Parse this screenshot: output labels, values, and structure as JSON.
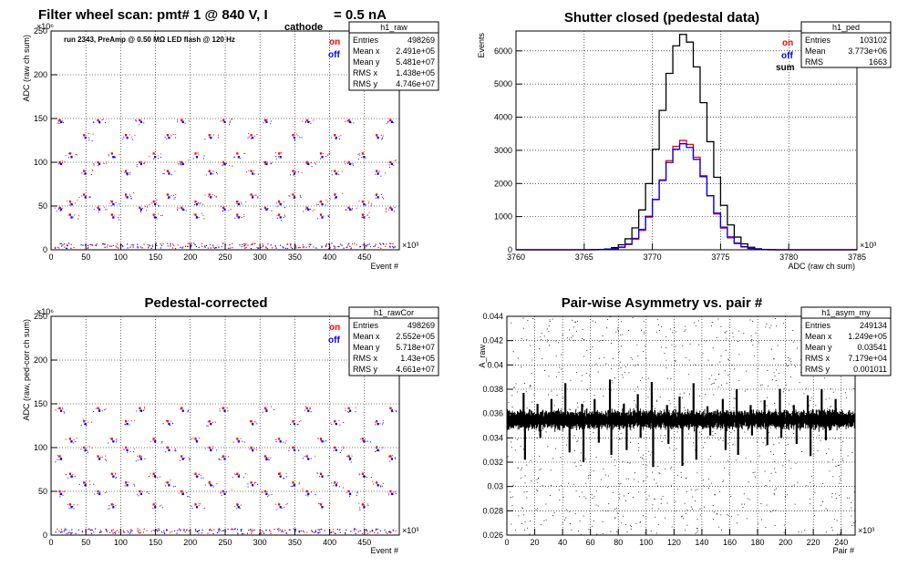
{
  "chart_data": [
    {
      "type": "scatter",
      "title_main": "Filter wheel scan: pmt#   1 @   840 V, I",
      "title_sub": "cathode",
      "title_end": "= 0.5 nA",
      "annotation": "run 2343, PreAmp @ 0.50 MΩ   LED flash @  120 Hz",
      "xlabel": "Event #",
      "ylabel": "ADC (raw ch sum)",
      "x_exponent": "×10³",
      "y_exponent": "×10⁶",
      "xlim": [
        0,
        500
      ],
      "ylim": [
        0,
        250
      ],
      "xticks": [
        0,
        50,
        100,
        150,
        200,
        250,
        300,
        350,
        400,
        450
      ],
      "yticks": [
        0,
        50,
        100,
        150,
        200,
        250
      ],
      "grid": true,
      "legend_position": "top-right",
      "legend": [
        {
          "label": "on",
          "color": "#ff0000"
        },
        {
          "label": "off",
          "color": "#0000ff"
        }
      ],
      "stats": {
        "name": "h1_raw",
        "rows": [
          [
            "Entries",
            "498269"
          ],
          [
            "Mean x",
            "2.491e+05"
          ],
          [
            "Mean y",
            "5.481e+07"
          ],
          [
            "RMS x",
            "1.438e+05"
          ],
          [
            "RMS y",
            "4.746e+07"
          ]
        ]
      },
      "bands": [
        {
          "x": [
            5,
            20
          ],
          "on": [
            48,
            100,
            148
          ],
          "off": [
            46,
            98,
            146
          ]
        },
        {
          "x": [
            20,
            40
          ],
          "on": [
            40,
            55,
            110
          ],
          "off": [
            37,
            52,
            106
          ]
        },
        {
          "x": [
            40,
            60
          ],
          "on": [
            63,
            90,
            131
          ],
          "off": [
            60,
            87,
            128
          ]
        },
        {
          "x": [
            60,
            80
          ],
          "on": [
            48,
            100,
            148
          ],
          "off": [
            46,
            98,
            146
          ]
        },
        {
          "x": [
            80,
            100
          ],
          "on": [
            40,
            55,
            110
          ],
          "off": [
            37,
            52,
            106
          ]
        },
        {
          "x": [
            100,
            120
          ],
          "on": [
            63,
            90,
            131
          ],
          "off": [
            60,
            87,
            128
          ]
        },
        {
          "x": [
            120,
            140
          ],
          "on": [
            48,
            100,
            148
          ],
          "off": [
            46,
            98,
            146
          ]
        },
        {
          "x": [
            140,
            160
          ],
          "on": [
            40,
            55,
            110
          ],
          "off": [
            37,
            52,
            106
          ]
        },
        {
          "x": [
            160,
            180
          ],
          "on": [
            63,
            90,
            131
          ],
          "off": [
            60,
            87,
            128
          ]
        },
        {
          "x": [
            180,
            200
          ],
          "on": [
            48,
            100,
            148
          ],
          "off": [
            46,
            98,
            146
          ]
        },
        {
          "x": [
            200,
            220
          ],
          "on": [
            40,
            55,
            110
          ],
          "off": [
            37,
            52,
            106
          ]
        },
        {
          "x": [
            220,
            240
          ],
          "on": [
            63,
            90,
            131
          ],
          "off": [
            60,
            87,
            128
          ]
        },
        {
          "x": [
            240,
            260
          ],
          "on": [
            48,
            100,
            148
          ],
          "off": [
            46,
            98,
            146
          ]
        },
        {
          "x": [
            260,
            280
          ],
          "on": [
            40,
            55,
            110
          ],
          "off": [
            37,
            52,
            106
          ]
        },
        {
          "x": [
            280,
            300
          ],
          "on": [
            63,
            90,
            131
          ],
          "off": [
            60,
            87,
            128
          ]
        },
        {
          "x": [
            300,
            320
          ],
          "on": [
            48,
            100,
            148
          ],
          "off": [
            46,
            98,
            146
          ]
        },
        {
          "x": [
            320,
            340
          ],
          "on": [
            40,
            55,
            110
          ],
          "off": [
            37,
            52,
            106
          ]
        },
        {
          "x": [
            340,
            360
          ],
          "on": [
            63,
            90,
            131
          ],
          "off": [
            60,
            87,
            128
          ]
        },
        {
          "x": [
            360,
            380
          ],
          "on": [
            48,
            100,
            148
          ],
          "off": [
            46,
            98,
            146
          ]
        },
        {
          "x": [
            380,
            400
          ],
          "on": [
            40,
            55,
            110
          ],
          "off": [
            37,
            52,
            106
          ]
        },
        {
          "x": [
            400,
            420
          ],
          "on": [
            63,
            90,
            131
          ],
          "off": [
            60,
            87,
            128
          ]
        },
        {
          "x": [
            420,
            440
          ],
          "on": [
            48,
            100,
            148
          ],
          "off": [
            46,
            98,
            146
          ]
        },
        {
          "x": [
            440,
            460
          ],
          "on": [
            40,
            55,
            110
          ],
          "off": [
            37,
            52,
            106
          ]
        },
        {
          "x": [
            460,
            480
          ],
          "on": [
            63,
            90,
            131
          ],
          "off": [
            60,
            87,
            128
          ]
        },
        {
          "x": [
            480,
            495
          ],
          "on": [
            48,
            100,
            148
          ],
          "off": [
            46,
            98,
            146
          ]
        }
      ]
    },
    {
      "type": "histogram",
      "title": "Shutter closed (pedestal data)",
      "xlabel": "ADC (raw ch sum)",
      "ylabel": "Events",
      "x_exponent": "×10³",
      "xlim": [
        3760,
        3785
      ],
      "ylim": [
        0,
        6600
      ],
      "xticks": [
        3760,
        3765,
        3770,
        3775,
        3780,
        3785
      ],
      "yticks": [
        0,
        1000,
        2000,
        3000,
        4000,
        5000,
        6000
      ],
      "grid": true,
      "legend_position": "top-right",
      "legend": [
        {
          "label": "on",
          "color": "#ff0000"
        },
        {
          "label": "off",
          "color": "#0000ff"
        },
        {
          "label": "sum",
          "color": "#000000"
        }
      ],
      "stats": {
        "name": "h1_ped",
        "rows": [
          [
            "Entries",
            "103102"
          ],
          [
            "Mean",
            "3.773e+06"
          ],
          [
            "RMS",
            "1663"
          ]
        ]
      },
      "bin_width": 0.5,
      "series": [
        {
          "name": "sum",
          "color": "#000000",
          "peak": 6500,
          "center": 3772.3,
          "sigma": 1.66
        },
        {
          "name": "on",
          "color": "#ff0000",
          "peak": 3300,
          "center": 3772.3,
          "sigma": 1.64
        },
        {
          "name": "off",
          "color": "#0000ff",
          "peak": 3200,
          "center": 3772.3,
          "sigma": 1.68
        }
      ]
    },
    {
      "type": "scatter",
      "title": "Pedestal-corrected",
      "xlabel": "Event #",
      "ylabel": "ADC (raw, ped-corr ch sum)",
      "x_exponent": "×10³",
      "y_exponent": "×10⁶",
      "xlim": [
        0,
        500
      ],
      "ylim": [
        0,
        250
      ],
      "xticks": [
        0,
        50,
        100,
        150,
        200,
        250,
        300,
        350,
        400,
        450
      ],
      "yticks": [
        0,
        50,
        100,
        150,
        200,
        250
      ],
      "grid": true,
      "legend_position": "top-right",
      "legend": [
        {
          "label": "on",
          "color": "#ff0000"
        },
        {
          "label": "off",
          "color": "#0000ff"
        }
      ],
      "stats": {
        "name": "h1_rawCor",
        "rows": [
          [
            "Entries",
            "498269"
          ],
          [
            "Mean x",
            "2.552e+05"
          ],
          [
            "Mean y",
            "5.718e+07"
          ],
          [
            "RMS x",
            "1.43e+05"
          ],
          [
            "RMS y",
            "4.661e+07"
          ]
        ]
      },
      "bands": [
        {
          "x": [
            5,
            20
          ],
          "on": [
            50,
            90,
            145
          ],
          "off": [
            47,
            87,
            142
          ]
        },
        {
          "x": [
            20,
            40
          ],
          "on": [
            35,
            70,
            110
          ],
          "off": [
            32,
            67,
            107
          ]
        },
        {
          "x": [
            40,
            60
          ],
          "on": [
            60,
            100,
            130
          ],
          "off": [
            57,
            97,
            127
          ]
        },
        {
          "x": [
            60,
            80
          ],
          "on": [
            50,
            90,
            145
          ],
          "off": [
            47,
            87,
            142
          ]
        },
        {
          "x": [
            80,
            100
          ],
          "on": [
            35,
            70,
            110
          ],
          "off": [
            32,
            67,
            107
          ]
        },
        {
          "x": [
            100,
            120
          ],
          "on": [
            60,
            100,
            130
          ],
          "off": [
            57,
            97,
            127
          ]
        },
        {
          "x": [
            120,
            140
          ],
          "on": [
            50,
            90,
            145
          ],
          "off": [
            47,
            87,
            142
          ]
        },
        {
          "x": [
            140,
            160
          ],
          "on": [
            35,
            70,
            110
          ],
          "off": [
            32,
            67,
            107
          ]
        },
        {
          "x": [
            160,
            180
          ],
          "on": [
            60,
            100,
            130
          ],
          "off": [
            57,
            97,
            127
          ]
        },
        {
          "x": [
            180,
            200
          ],
          "on": [
            50,
            90,
            145
          ],
          "off": [
            47,
            87,
            142
          ]
        },
        {
          "x": [
            200,
            220
          ],
          "on": [
            35,
            70,
            110
          ],
          "off": [
            32,
            67,
            107
          ]
        },
        {
          "x": [
            220,
            240
          ],
          "on": [
            60,
            100,
            130
          ],
          "off": [
            57,
            97,
            127
          ]
        },
        {
          "x": [
            240,
            260
          ],
          "on": [
            50,
            90,
            145
          ],
          "off": [
            47,
            87,
            142
          ]
        },
        {
          "x": [
            260,
            280
          ],
          "on": [
            35,
            70,
            110
          ],
          "off": [
            32,
            67,
            107
          ]
        },
        {
          "x": [
            280,
            300
          ],
          "on": [
            60,
            100,
            130
          ],
          "off": [
            57,
            97,
            127
          ]
        },
        {
          "x": [
            300,
            320
          ],
          "on": [
            50,
            90,
            145
          ],
          "off": [
            47,
            87,
            142
          ]
        },
        {
          "x": [
            320,
            340
          ],
          "on": [
            35,
            70,
            110
          ],
          "off": [
            32,
            67,
            107
          ]
        },
        {
          "x": [
            340,
            360
          ],
          "on": [
            60,
            100,
            130
          ],
          "off": [
            57,
            97,
            127
          ]
        },
        {
          "x": [
            360,
            380
          ],
          "on": [
            50,
            90,
            145
          ],
          "off": [
            47,
            87,
            142
          ]
        },
        {
          "x": [
            380,
            400
          ],
          "on": [
            35,
            70,
            110
          ],
          "off": [
            32,
            67,
            107
          ]
        },
        {
          "x": [
            400,
            420
          ],
          "on": [
            60,
            100,
            130
          ],
          "off": [
            57,
            97,
            127
          ]
        },
        {
          "x": [
            420,
            440
          ],
          "on": [
            50,
            90,
            145
          ],
          "off": [
            47,
            87,
            142
          ]
        },
        {
          "x": [
            440,
            460
          ],
          "on": [
            35,
            70,
            110
          ],
          "off": [
            32,
            67,
            107
          ]
        },
        {
          "x": [
            460,
            480
          ],
          "on": [
            60,
            100,
            130
          ],
          "off": [
            57,
            97,
            127
          ]
        },
        {
          "x": [
            480,
            495
          ],
          "on": [
            50,
            90,
            145
          ],
          "off": [
            47,
            87,
            142
          ]
        }
      ]
    },
    {
      "type": "scatter",
      "title": "Pair-wise Asymmetry vs. pair #",
      "xlabel": "Pair #",
      "ylabel": "A_raw",
      "x_exponent": "×10³",
      "xlim": [
        0,
        250
      ],
      "ylim": [
        0.026,
        0.044
      ],
      "xticks": [
        0,
        20,
        40,
        60,
        80,
        100,
        120,
        140,
        160,
        180,
        200,
        220,
        240
      ],
      "yticks": [
        0.026,
        0.028,
        0.03,
        0.032,
        0.034,
        0.036,
        0.038,
        0.04,
        0.042,
        0.044
      ],
      "grid": true,
      "stats": {
        "name": "h1_asym_my",
        "rows": [
          [
            "Entries",
            "249134"
          ],
          [
            "Mean x",
            "1.249e+05"
          ],
          [
            "Mean y",
            "0.03541"
          ],
          [
            "RMS x",
            "7.179e+04"
          ],
          [
            "RMS y",
            "0.001011"
          ]
        ]
      },
      "band_center": 0.0355,
      "band_halfwidth": 0.0006,
      "spikes_up": [
        [
          12,
          0.0377
        ],
        [
          22,
          0.0368
        ],
        [
          32,
          0.0372
        ],
        [
          42,
          0.0385
        ],
        [
          54,
          0.0368
        ],
        [
          63,
          0.0372
        ],
        [
          74,
          0.0388
        ],
        [
          84,
          0.0368
        ],
        [
          94,
          0.0376
        ],
        [
          104,
          0.0386
        ],
        [
          115,
          0.0367
        ],
        [
          124,
          0.0374
        ],
        [
          134,
          0.0385
        ],
        [
          144,
          0.0366
        ],
        [
          155,
          0.0372
        ],
        [
          165,
          0.038
        ],
        [
          175,
          0.0367
        ],
        [
          185,
          0.0371
        ],
        [
          196,
          0.038
        ],
        [
          206,
          0.0367
        ],
        [
          216,
          0.0375
        ],
        [
          226,
          0.038
        ],
        [
          236,
          0.0372
        ]
      ],
      "spikes_down": [
        [
          13,
          0.0322
        ],
        [
          24,
          0.034
        ],
        [
          45,
          0.0328
        ],
        [
          55,
          0.032
        ],
        [
          66,
          0.0336
        ],
        [
          75,
          0.0326
        ],
        [
          86,
          0.033
        ],
        [
          96,
          0.034
        ],
        [
          105,
          0.0316
        ],
        [
          116,
          0.0335
        ],
        [
          126,
          0.0317
        ],
        [
          136,
          0.0322
        ],
        [
          146,
          0.0342
        ],
        [
          157,
          0.033
        ],
        [
          166,
          0.0326
        ],
        [
          176,
          0.0342
        ],
        [
          187,
          0.0334
        ],
        [
          197,
          0.034
        ],
        [
          208,
          0.0335
        ],
        [
          218,
          0.0325
        ],
        [
          229,
          0.0338
        ]
      ]
    }
  ]
}
